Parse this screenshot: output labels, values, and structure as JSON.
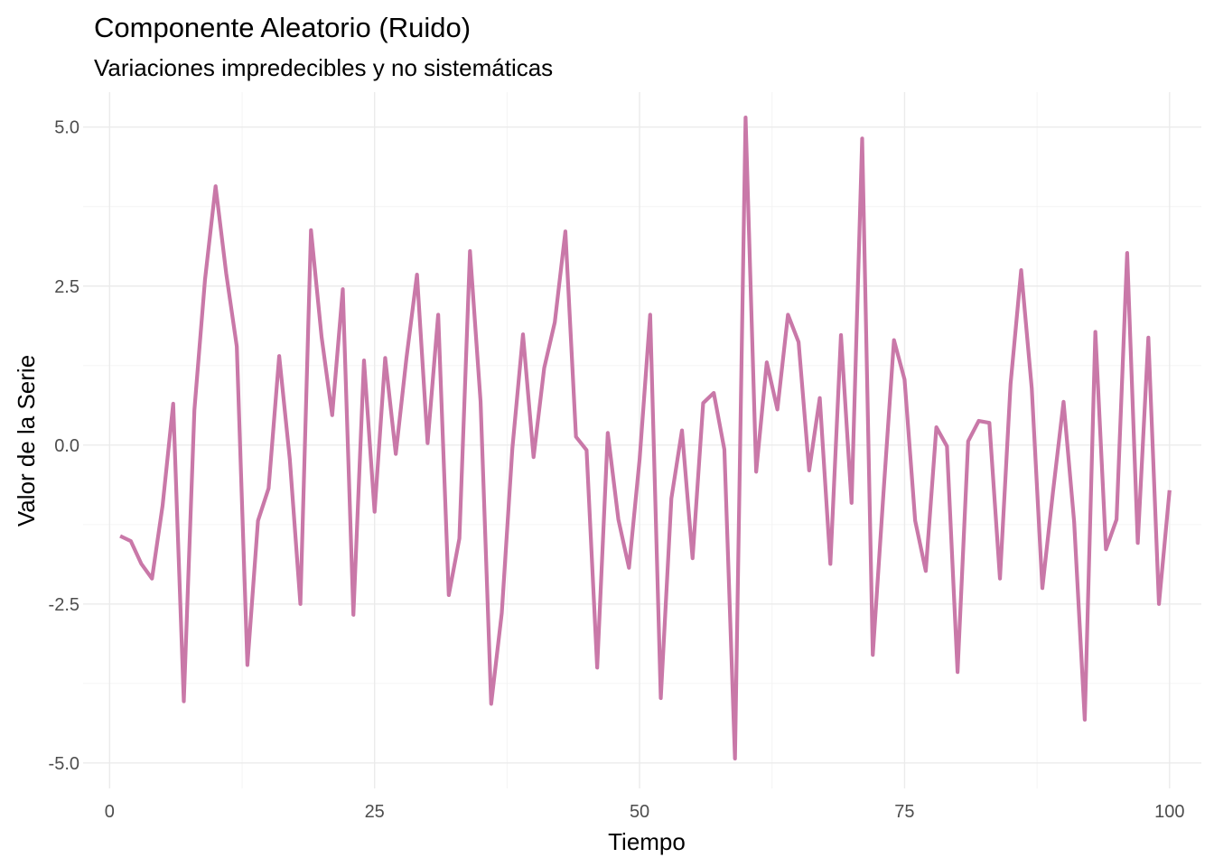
{
  "chart_data": {
    "type": "line",
    "title": "Componente Aleatorio (Ruido)",
    "subtitle": "Variaciones impredecibles y no sistemáticas",
    "xlabel": "Tiempo",
    "ylabel": "Valor de la Serie",
    "xlim": [
      -2.5,
      103
    ],
    "ylim": [
      -5.4,
      5.55
    ],
    "x_ticks": [
      0,
      25,
      50,
      75,
      100
    ],
    "x_tick_labels": [
      "0",
      "25",
      "50",
      "75",
      "100"
    ],
    "y_ticks": [
      -5,
      -2.5,
      0,
      2.5,
      5
    ],
    "y_tick_labels": [
      "-5.0",
      "-2.5",
      "0.0",
      "2.5",
      "5.0"
    ],
    "grid": true,
    "line_color": "#c978a8",
    "series": [
      {
        "x": [
          1,
          2,
          3,
          4,
          5,
          6,
          7,
          8,
          9,
          10,
          11,
          12,
          13,
          14,
          15,
          16,
          17,
          18,
          19,
          20,
          21,
          22,
          23,
          24,
          25,
          26,
          27,
          28,
          29,
          30,
          31,
          32,
          33,
          34,
          35,
          36,
          37,
          38,
          39,
          40,
          41,
          42,
          43,
          44,
          45,
          46,
          47,
          48,
          49,
          50,
          51,
          52,
          53,
          54,
          55,
          56,
          57,
          58,
          59,
          60,
          61,
          62,
          63,
          64,
          65,
          66,
          67,
          68,
          69,
          70,
          71,
          72,
          73,
          74,
          75,
          76,
          77,
          78,
          79,
          80,
          81,
          82,
          83,
          84,
          85,
          86,
          87,
          88,
          89,
          90,
          91,
          92,
          93,
          94,
          95,
          96,
          97,
          98,
          99,
          100
        ],
        "values": [
          -1.43,
          -1.51,
          -1.87,
          -2.1,
          -0.95,
          0.65,
          -4.03,
          0.55,
          2.6,
          4.07,
          2.7,
          1.55,
          -3.46,
          -1.19,
          -0.68,
          1.4,
          -0.22,
          -2.5,
          3.38,
          1.7,
          0.47,
          2.45,
          -2.67,
          1.33,
          -1.05,
          1.37,
          -0.14,
          1.36,
          2.68,
          0.03,
          2.05,
          -2.36,
          -1.47,
          3.05,
          0.68,
          -4.07,
          -2.64,
          -0.05,
          1.74,
          -0.19,
          1.21,
          1.93,
          3.36,
          0.13,
          -0.08,
          -3.5,
          0.19,
          -1.17,
          -1.93,
          -0.23,
          2.05,
          -3.98,
          -0.84,
          0.23,
          -1.78,
          0.66,
          0.82,
          -0.07,
          -4.93,
          5.15,
          -0.42,
          1.3,
          0.56,
          2.05,
          1.62,
          -0.4,
          0.74,
          -1.87,
          1.73,
          -0.91,
          4.82,
          -3.3,
          -0.78,
          1.65,
          1.03,
          -1.19,
          -1.98,
          0.28,
          -0.02,
          -3.57,
          0.06,
          0.38,
          0.35,
          -2.1,
          0.96,
          2.75,
          0.89,
          -2.25,
          -0.74,
          0.68,
          -1.21,
          -4.32,
          1.78,
          -1.64,
          -1.17,
          3.02,
          -1.54,
          1.69,
          -2.5,
          -0.71
        ]
      }
    ]
  }
}
